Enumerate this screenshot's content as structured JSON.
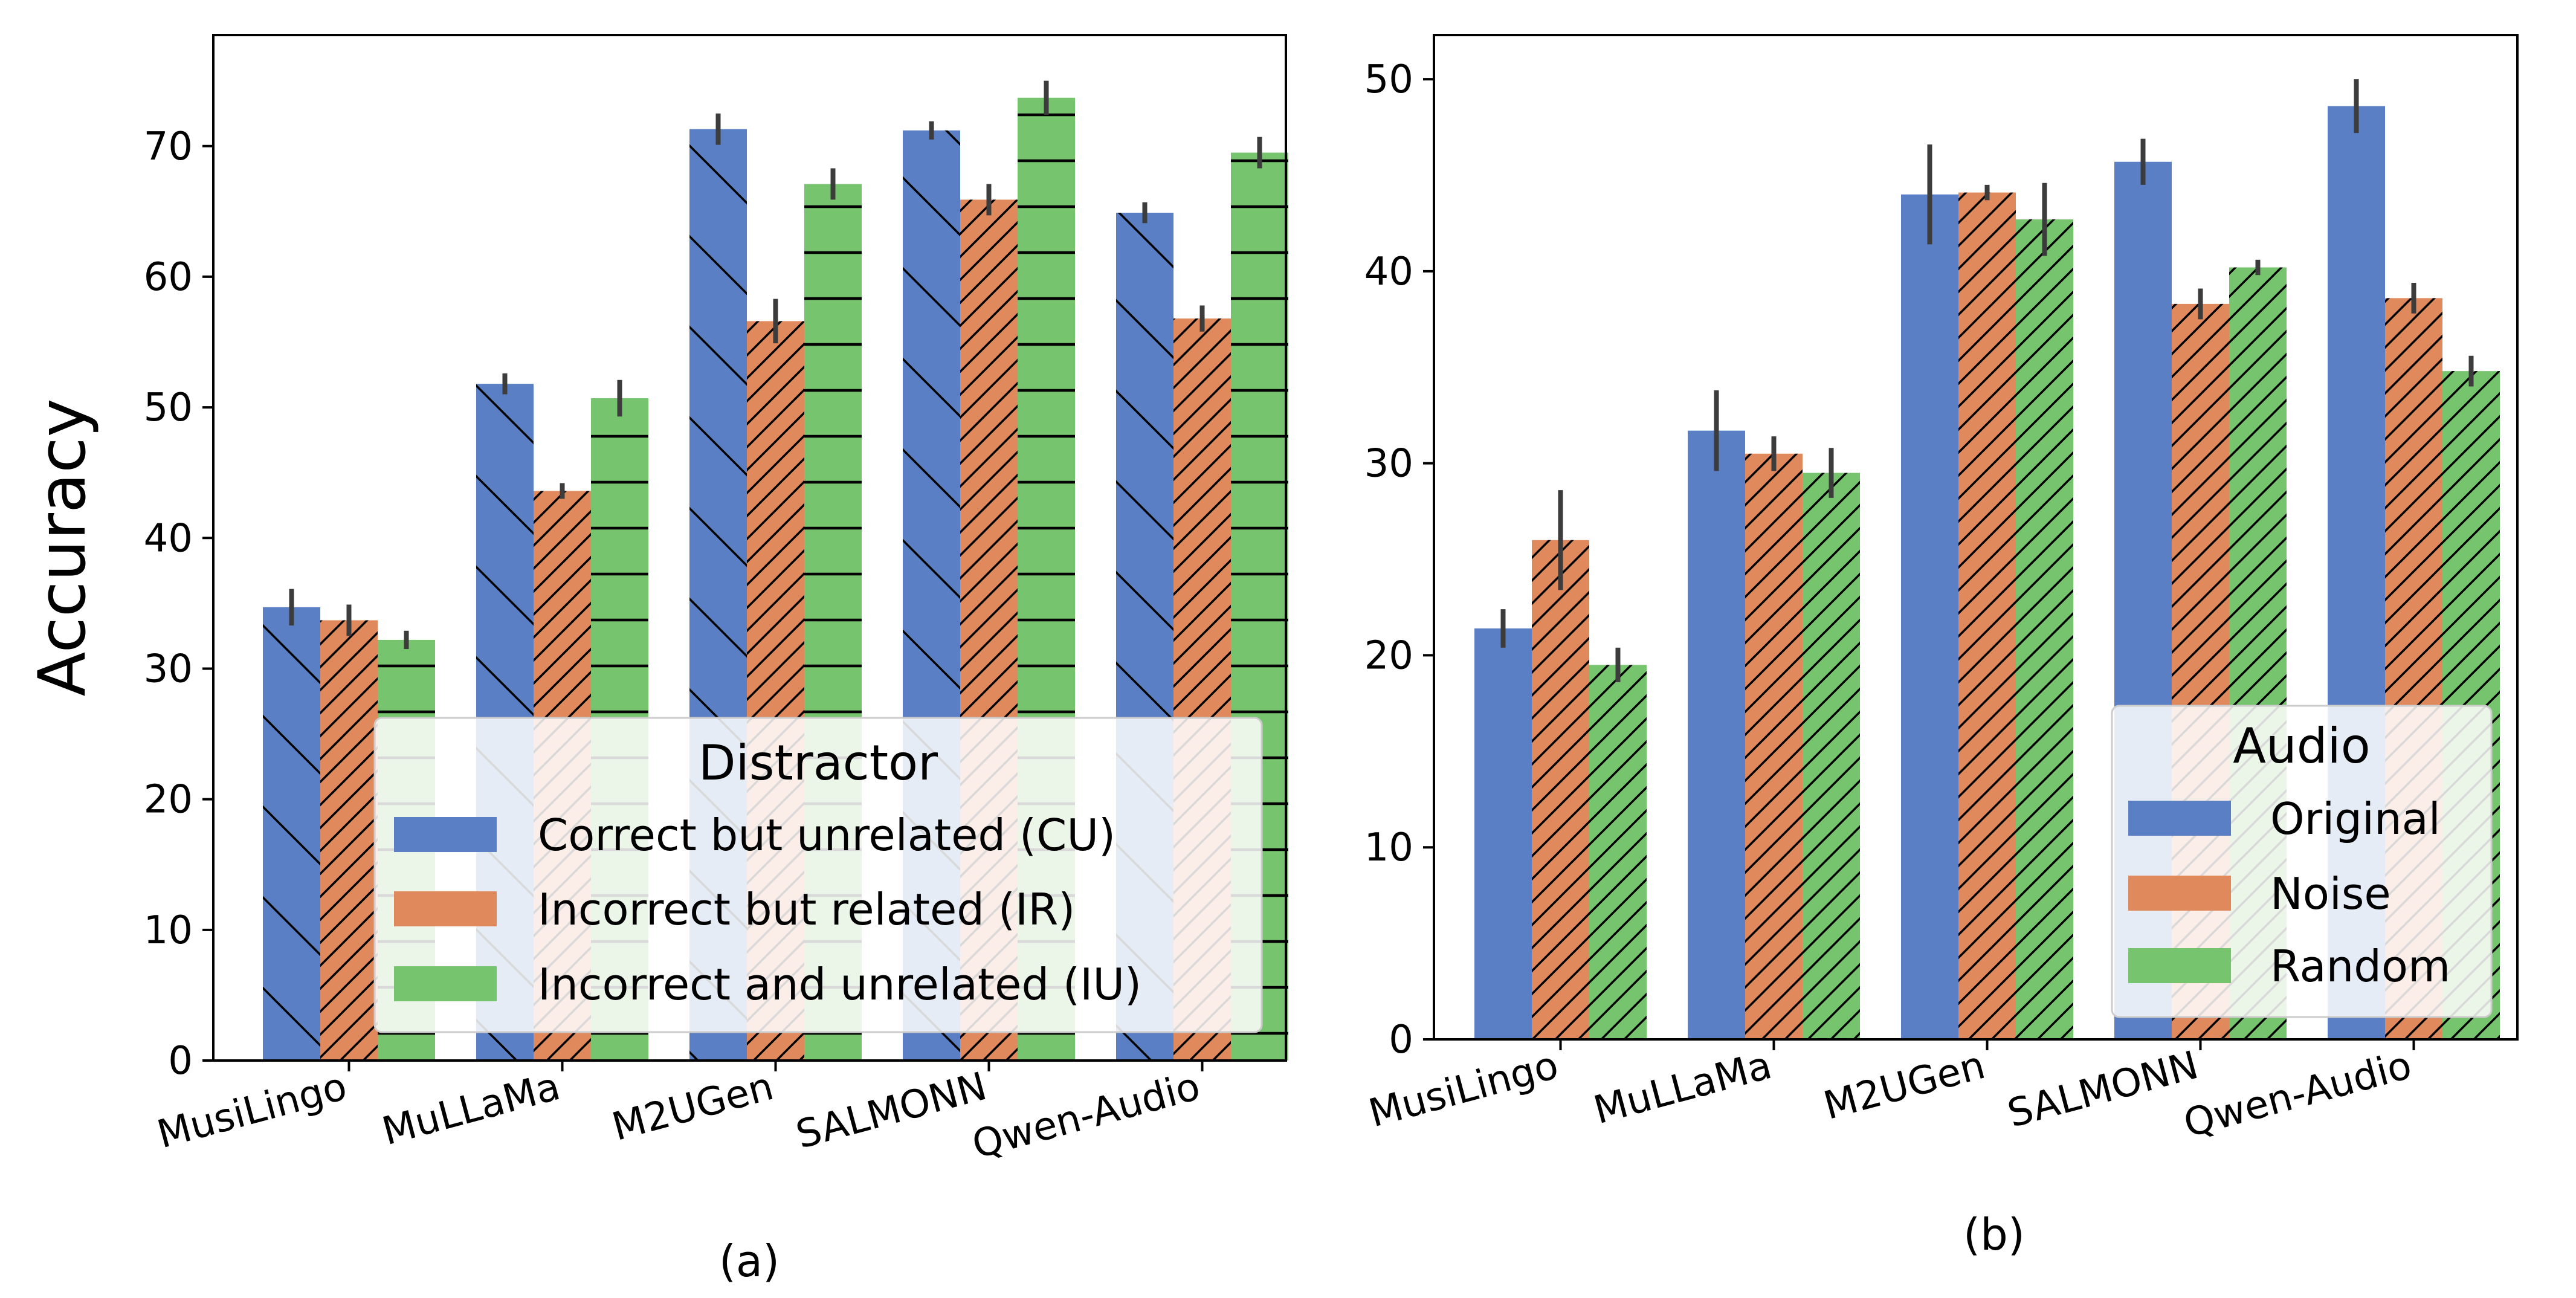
{
  "chart_data": [
    {
      "type": "bar",
      "caption": "(a)",
      "ylabel": "Accuracy",
      "xlabel": "",
      "categories": [
        "MusiLingo",
        "MuLLaMa",
        "M2UGen",
        "SALMONN",
        "Qwen-Audio"
      ],
      "ylim": [
        0,
        78.5
      ],
      "yticks": [
        0,
        10,
        20,
        30,
        40,
        50,
        60,
        70
      ],
      "legend": {
        "title": "Distractor",
        "placement": "lower-right"
      },
      "grid": false,
      "series": [
        {
          "name": "Correct but unrelated (CU)",
          "color": "#5a7fc4",
          "hatch": "backslash",
          "values": [
            34.7,
            51.8,
            71.3,
            71.2,
            64.9
          ],
          "err": [
            1.4,
            0.8,
            1.2,
            0.7,
            0.8
          ]
        },
        {
          "name": "Incorrect but related (IR)",
          "color": "#e0895c",
          "hatch": "slash",
          "values": [
            33.7,
            43.6,
            56.6,
            65.9,
            56.8
          ],
          "err": [
            1.2,
            0.6,
            1.7,
            1.2,
            1.0
          ]
        },
        {
          "name": "Incorrect and unrelated (IU)",
          "color": "#77c46f",
          "hatch": "horizontal",
          "values": [
            32.2,
            50.7,
            67.1,
            73.7,
            69.5
          ],
          "err": [
            0.7,
            1.4,
            1.2,
            1.3,
            1.2
          ]
        }
      ]
    },
    {
      "type": "bar",
      "caption": "(b)",
      "ylabel": "",
      "xlabel": "",
      "categories": [
        "MusiLingo",
        "MuLLaMa",
        "M2UGen",
        "SALMONN",
        "Qwen-Audio"
      ],
      "ylim": [
        0,
        52.3
      ],
      "yticks": [
        0,
        10,
        20,
        30,
        40,
        50
      ],
      "legend": {
        "title": "Audio",
        "placement": "lower-right"
      },
      "grid": false,
      "series": [
        {
          "name": "Original",
          "color": "#5a7fc4",
          "hatch": "none",
          "values": [
            21.4,
            31.7,
            44.0,
            45.7,
            48.6
          ],
          "err": [
            1.0,
            2.1,
            2.6,
            1.2,
            1.4
          ]
        },
        {
          "name": "Noise",
          "color": "#e0895c",
          "hatch": "slash",
          "values": [
            26.0,
            30.5,
            44.1,
            38.3,
            38.6
          ],
          "err": [
            2.6,
            0.9,
            0.4,
            0.8,
            0.8
          ]
        },
        {
          "name": "Random",
          "color": "#77c46f",
          "hatch": "slash",
          "values": [
            19.5,
            29.5,
            42.7,
            40.2,
            34.8
          ],
          "err": [
            0.9,
            1.3,
            1.9,
            0.4,
            0.8
          ]
        }
      ]
    }
  ]
}
